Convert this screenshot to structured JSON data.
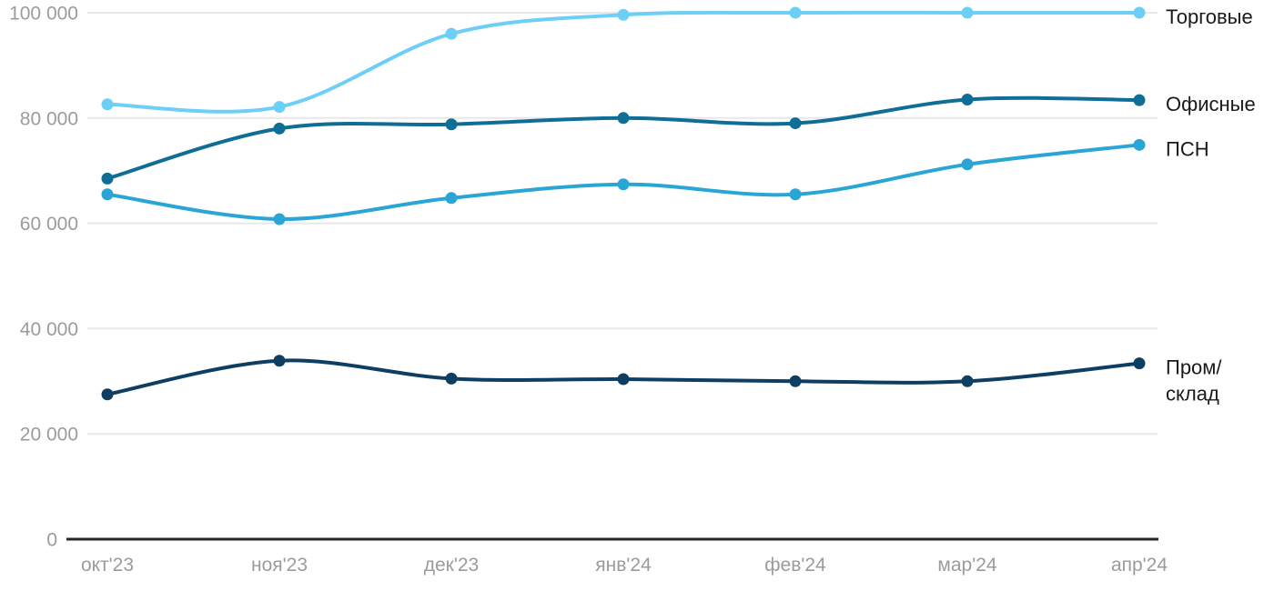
{
  "chart_data": {
    "type": "line",
    "title": "",
    "xlabel": "",
    "ylabel": "",
    "x": [
      "окт'23",
      "ноя'23",
      "дек'23",
      "янв'24",
      "фев'24",
      "мар'24",
      "апр'24"
    ],
    "ylim": [
      0,
      100000
    ],
    "grid": "horizontal",
    "legend_position": "right-of-line-end",
    "y_ticks": [
      {
        "value": 0,
        "label": "0"
      },
      {
        "value": 20000,
        "label": "20 000"
      },
      {
        "value": 40000,
        "label": "40 000"
      },
      {
        "value": 60000,
        "label": "60 000"
      },
      {
        "value": 80000,
        "label": "80 000"
      },
      {
        "value": 100000,
        "label": "100 000"
      }
    ],
    "series": [
      {
        "name": "Торговые",
        "legend_lines": [
          "Торговые"
        ],
        "color": "#6dcff6",
        "values": [
          82600,
          82100,
          96000,
          99600,
          100000,
          100000,
          100000
        ]
      },
      {
        "name": "Офисные",
        "legend_lines": [
          "Офисные"
        ],
        "color": "#0f6e96",
        "values": [
          68500,
          78000,
          78800,
          80000,
          79000,
          83500,
          83400
        ]
      },
      {
        "name": "ПСН",
        "legend_lines": [
          "ПСН"
        ],
        "color": "#29a5d6",
        "values": [
          65500,
          60800,
          64800,
          67400,
          65500,
          71200,
          74900
        ]
      },
      {
        "name": "Пром/склад",
        "legend_lines": [
          "Пром/",
          "склад"
        ],
        "color": "#0e3f63",
        "values": [
          27500,
          33900,
          30500,
          30400,
          30000,
          30000,
          33400
        ]
      }
    ],
    "colors": {
      "background": "#ffffff",
      "gridline": "#e8e8e8",
      "axis_line": "#262626",
      "tick_label": "#9b9b9b",
      "legend_label": "#1a1a1a"
    }
  }
}
